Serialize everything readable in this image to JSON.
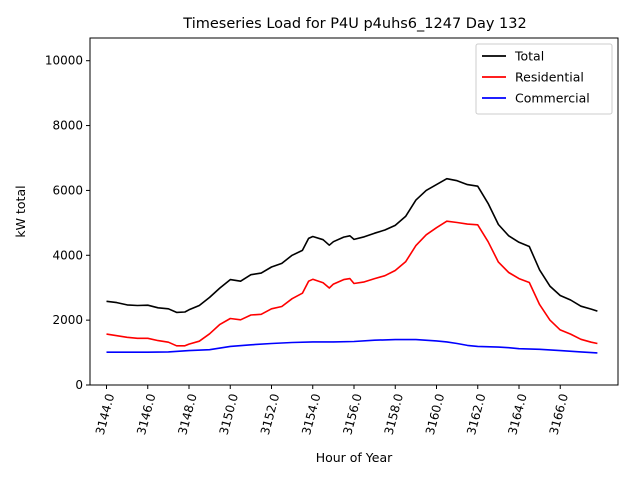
{
  "chart_data": {
    "type": "line",
    "title": "Timeseries Load for P4U p4uhs6_1247  Day 132",
    "xlabel": "Hour of Year",
    "ylabel": "kW total",
    "xlim": [
      3143.2,
      3168.8
    ],
    "ylim": [
      0,
      10700
    ],
    "xticks": [
      3144,
      3146,
      3148,
      3150,
      3152,
      3154,
      3156,
      3158,
      3160,
      3162,
      3164,
      3166
    ],
    "xtick_labels": [
      "3144.0",
      "3146.0",
      "3148.0",
      "3150.0",
      "3152.0",
      "3154.0",
      "3156.0",
      "3158.0",
      "3160.0",
      "3162.0",
      "3164.0",
      "3166.0"
    ],
    "yticks": [
      0,
      2000,
      4000,
      6000,
      8000,
      10000
    ],
    "ytick_labels": [
      "0",
      "2000",
      "4000",
      "6000",
      "8000",
      "10000"
    ],
    "grid": false,
    "legend": "top-right",
    "series": [
      {
        "name": "Total",
        "color": "#000000",
        "points": [
          [
            3144.0,
            2580
          ],
          [
            3144.5,
            2540
          ],
          [
            3145.0,
            2470
          ],
          [
            3145.5,
            2450
          ],
          [
            3146.0,
            2460
          ],
          [
            3146.5,
            2380
          ],
          [
            3147.0,
            2350
          ],
          [
            3147.4,
            2240
          ],
          [
            3147.8,
            2250
          ],
          [
            3148.0,
            2320
          ],
          [
            3148.5,
            2450
          ],
          [
            3149.0,
            2700
          ],
          [
            3149.5,
            2990
          ],
          [
            3150.0,
            3250
          ],
          [
            3150.5,
            3200
          ],
          [
            3151.0,
            3400
          ],
          [
            3151.5,
            3450
          ],
          [
            3152.0,
            3640
          ],
          [
            3152.5,
            3750
          ],
          [
            3153.0,
            4000
          ],
          [
            3153.5,
            4150
          ],
          [
            3153.8,
            4520
          ],
          [
            3154.0,
            4580
          ],
          [
            3154.5,
            4480
          ],
          [
            3154.8,
            4310
          ],
          [
            3155.0,
            4420
          ],
          [
            3155.5,
            4560
          ],
          [
            3155.8,
            4600
          ],
          [
            3156.0,
            4490
          ],
          [
            3156.5,
            4570
          ],
          [
            3157.0,
            4680
          ],
          [
            3157.5,
            4780
          ],
          [
            3158.0,
            4920
          ],
          [
            3158.5,
            5200
          ],
          [
            3159.0,
            5700
          ],
          [
            3159.5,
            6000
          ],
          [
            3160.0,
            6180
          ],
          [
            3160.5,
            6360
          ],
          [
            3161.0,
            6300
          ],
          [
            3161.5,
            6180
          ],
          [
            3162.0,
            6130
          ],
          [
            3162.5,
            5600
          ],
          [
            3163.0,
            4950
          ],
          [
            3163.5,
            4600
          ],
          [
            3164.0,
            4400
          ],
          [
            3164.5,
            4270
          ],
          [
            3165.0,
            3550
          ],
          [
            3165.5,
            3050
          ],
          [
            3166.0,
            2760
          ],
          [
            3166.5,
            2620
          ],
          [
            3167.0,
            2430
          ],
          [
            3167.5,
            2340
          ],
          [
            3167.8,
            2280
          ]
        ]
      },
      {
        "name": "Residential",
        "color": "#ff0000",
        "points": [
          [
            3144.0,
            1570
          ],
          [
            3144.5,
            1520
          ],
          [
            3145.0,
            1470
          ],
          [
            3145.5,
            1440
          ],
          [
            3146.0,
            1440
          ],
          [
            3146.5,
            1370
          ],
          [
            3147.0,
            1320
          ],
          [
            3147.4,
            1210
          ],
          [
            3147.8,
            1210
          ],
          [
            3148.0,
            1260
          ],
          [
            3148.5,
            1350
          ],
          [
            3149.0,
            1580
          ],
          [
            3149.5,
            1870
          ],
          [
            3150.0,
            2050
          ],
          [
            3150.5,
            2010
          ],
          [
            3151.0,
            2160
          ],
          [
            3151.5,
            2180
          ],
          [
            3152.0,
            2350
          ],
          [
            3152.5,
            2420
          ],
          [
            3153.0,
            2660
          ],
          [
            3153.5,
            2830
          ],
          [
            3153.8,
            3200
          ],
          [
            3154.0,
            3260
          ],
          [
            3154.5,
            3150
          ],
          [
            3154.8,
            2990
          ],
          [
            3155.0,
            3110
          ],
          [
            3155.5,
            3250
          ],
          [
            3155.8,
            3280
          ],
          [
            3156.0,
            3130
          ],
          [
            3156.5,
            3180
          ],
          [
            3157.0,
            3280
          ],
          [
            3157.5,
            3370
          ],
          [
            3158.0,
            3530
          ],
          [
            3158.5,
            3800
          ],
          [
            3159.0,
            4300
          ],
          [
            3159.5,
            4630
          ],
          [
            3160.0,
            4850
          ],
          [
            3160.5,
            5050
          ],
          [
            3161.0,
            5010
          ],
          [
            3161.5,
            4960
          ],
          [
            3162.0,
            4940
          ],
          [
            3162.5,
            4420
          ],
          [
            3163.0,
            3790
          ],
          [
            3163.5,
            3470
          ],
          [
            3164.0,
            3280
          ],
          [
            3164.5,
            3160
          ],
          [
            3165.0,
            2480
          ],
          [
            3165.5,
            2000
          ],
          [
            3166.0,
            1700
          ],
          [
            3166.5,
            1570
          ],
          [
            3167.0,
            1410
          ],
          [
            3167.5,
            1320
          ],
          [
            3167.8,
            1280
          ]
        ]
      },
      {
        "name": "Commercial",
        "color": "#0000ff",
        "points": [
          [
            3144.0,
            1010
          ],
          [
            3145.0,
            1010
          ],
          [
            3146.0,
            1010
          ],
          [
            3147.0,
            1020
          ],
          [
            3148.0,
            1060
          ],
          [
            3149.0,
            1090
          ],
          [
            3150.0,
            1190
          ],
          [
            3151.0,
            1240
          ],
          [
            3152.0,
            1280
          ],
          [
            3153.0,
            1310
          ],
          [
            3154.0,
            1330
          ],
          [
            3155.0,
            1330
          ],
          [
            3156.0,
            1340
          ],
          [
            3157.0,
            1380
          ],
          [
            3158.0,
            1400
          ],
          [
            3159.0,
            1400
          ],
          [
            3160.0,
            1360
          ],
          [
            3160.5,
            1330
          ],
          [
            3161.0,
            1280
          ],
          [
            3161.5,
            1220
          ],
          [
            3162.0,
            1190
          ],
          [
            3163.0,
            1170
          ],
          [
            3163.5,
            1150
          ],
          [
            3164.0,
            1120
          ],
          [
            3165.0,
            1100
          ],
          [
            3166.0,
            1060
          ],
          [
            3167.0,
            1020
          ],
          [
            3167.8,
            990
          ]
        ]
      }
    ]
  }
}
